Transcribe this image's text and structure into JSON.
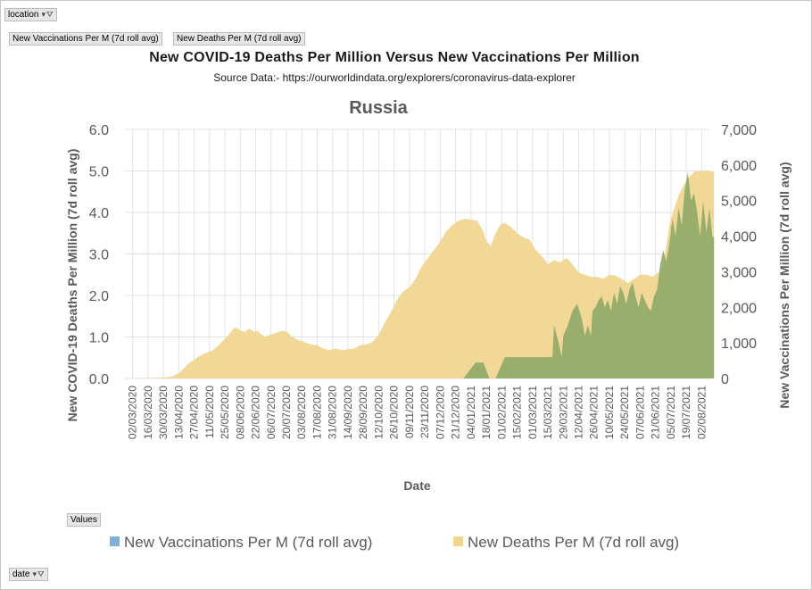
{
  "pivot": {
    "filter_field": "location",
    "row_field": "date",
    "values_button": "Values",
    "field_buttons": [
      "New Vaccinations Per M (7d roll avg)",
      "New Deaths Per M (7d roll avg)"
    ],
    "dropdown_glyph": "▾",
    "filter_glyph": "⛛"
  },
  "chart_data": {
    "type": "area",
    "title": "New COVID-19 Deaths Per Million  Versus  New Vaccinations  Per Million",
    "subtitle": "Source Data:- https://ourworldindata.org/explorers/coronavirus-data-explorer",
    "chart_title": "Russia",
    "xlabel": "Date",
    "ylabel_left": "New COVID-19 Deaths Per Million (7d roll avg)",
    "ylabel_right": "New Vaccinations Per Million (7d roll avg)",
    "y_left_range": [
      0,
      6
    ],
    "y_left_ticks": [
      "0.0",
      "1.0",
      "2.0",
      "3.0",
      "4.0",
      "5.0",
      "6.0"
    ],
    "y_right_range": [
      0,
      7000
    ],
    "y_right_ticks": [
      "0",
      "1,000",
      "2,000",
      "3,000",
      "4,000",
      "5,000",
      "6,000",
      "7,000"
    ],
    "x_tick_labels": [
      "02/03/2020",
      "16/03/2020",
      "30/03/2020",
      "13/04/2020",
      "27/04/2020",
      "11/05/2020",
      "25/05/2020",
      "08/06/2020",
      "22/06/2020",
      "06/07/2020",
      "20/07/2020",
      "03/08/2020",
      "17/08/2020",
      "31/08/2020",
      "14/09/2020",
      "28/09/2020",
      "12/10/2020",
      "26/10/2020",
      "09/11/2020",
      "23/11/2020",
      "07/12/2020",
      "21/12/2020",
      "04/01/2021",
      "18/01/2021",
      "01/02/2021",
      "15/02/2021",
      "01/03/2021",
      "15/03/2021",
      "29/03/2021",
      "12/04/2021",
      "26/04/2021",
      "10/05/2021",
      "24/05/2021",
      "07/06/2021",
      "21/06/2021",
      "05/07/2021",
      "19/07/2021",
      "02/08/2021"
    ],
    "grid": true,
    "legend_position": "bottom",
    "series": [
      {
        "name": "New Vaccinations Per M (7d roll avg)",
        "axis": "right",
        "color": "#8fa868",
        "legend_color": "#7fb0d6",
        "points": [
          [
            0,
            0
          ],
          [
            21.5,
            0
          ],
          [
            22.3,
            450
          ],
          [
            22.8,
            450
          ],
          [
            23.2,
            0
          ],
          [
            23.6,
            0
          ],
          [
            24.2,
            600
          ],
          [
            27.3,
            600
          ],
          [
            27.4,
            1500
          ],
          [
            27.7,
            1000
          ],
          [
            27.9,
            600
          ],
          [
            28.0,
            1200
          ],
          [
            28.3,
            1500
          ],
          [
            28.6,
            1900
          ],
          [
            28.9,
            2100
          ],
          [
            29.2,
            1700
          ],
          [
            29.4,
            1200
          ],
          [
            29.6,
            1500
          ],
          [
            29.8,
            1200
          ],
          [
            29.9,
            1900
          ],
          [
            30.1,
            2000
          ],
          [
            30.3,
            2200
          ],
          [
            30.5,
            2300
          ],
          [
            30.7,
            2000
          ],
          [
            30.9,
            2200
          ],
          [
            31.1,
            1900
          ],
          [
            31.3,
            2400
          ],
          [
            31.5,
            2100
          ],
          [
            31.7,
            2600
          ],
          [
            31.9,
            2400
          ],
          [
            32.1,
            2100
          ],
          [
            32.3,
            2500
          ],
          [
            32.5,
            2700
          ],
          [
            32.7,
            2300
          ],
          [
            32.9,
            2000
          ],
          [
            33.1,
            2400
          ],
          [
            33.3,
            2200
          ],
          [
            33.5,
            2000
          ],
          [
            33.7,
            1900
          ],
          [
            33.9,
            2300
          ],
          [
            34.1,
            2500
          ],
          [
            34.3,
            3200
          ],
          [
            34.5,
            3600
          ],
          [
            34.7,
            3300
          ],
          [
            34.9,
            3800
          ],
          [
            35.1,
            4500
          ],
          [
            35.3,
            4000
          ],
          [
            35.5,
            4800
          ],
          [
            35.7,
            4300
          ],
          [
            35.9,
            5300
          ],
          [
            36.1,
            5800
          ],
          [
            36.3,
            5000
          ],
          [
            36.5,
            5200
          ],
          [
            36.7,
            4700
          ],
          [
            36.9,
            4000
          ],
          [
            37.1,
            5000
          ],
          [
            37.3,
            4100
          ],
          [
            37.5,
            4800
          ],
          [
            37.7,
            4000
          ],
          [
            37.8,
            3950
          ]
        ]
      },
      {
        "name": "New Deaths Per M (7d roll avg)",
        "axis": "left",
        "color": "#f0d58e",
        "points": [
          [
            0,
            0
          ],
          [
            2,
            0.02
          ],
          [
            2.6,
            0.05
          ],
          [
            3.1,
            0.15
          ],
          [
            3.6,
            0.35
          ],
          [
            4.0,
            0.45
          ],
          [
            4.4,
            0.55
          ],
          [
            4.8,
            0.62
          ],
          [
            5.2,
            0.68
          ],
          [
            5.6,
            0.8
          ],
          [
            6.0,
            0.95
          ],
          [
            6.3,
            1.08
          ],
          [
            6.5,
            1.18
          ],
          [
            6.7,
            1.23
          ],
          [
            7.0,
            1.16
          ],
          [
            7.3,
            1.12
          ],
          [
            7.6,
            1.2
          ],
          [
            7.9,
            1.12
          ],
          [
            8.1,
            1.15
          ],
          [
            8.3,
            1.08
          ],
          [
            8.6,
            1.0
          ],
          [
            8.9,
            1.05
          ],
          [
            9.2,
            1.08
          ],
          [
            9.5,
            1.12
          ],
          [
            9.8,
            1.15
          ],
          [
            10.1,
            1.1
          ],
          [
            10.4,
            1.0
          ],
          [
            10.8,
            0.92
          ],
          [
            11.2,
            0.87
          ],
          [
            11.6,
            0.82
          ],
          [
            12.0,
            0.8
          ],
          [
            12.4,
            0.72
          ],
          [
            12.8,
            0.68
          ],
          [
            13.2,
            0.72
          ],
          [
            13.6,
            0.68
          ],
          [
            14.0,
            0.7
          ],
          [
            14.4,
            0.72
          ],
          [
            14.8,
            0.8
          ],
          [
            15.2,
            0.82
          ],
          [
            15.6,
            0.88
          ],
          [
            16.0,
            1.05
          ],
          [
            16.4,
            1.35
          ],
          [
            16.8,
            1.6
          ],
          [
            17.2,
            1.9
          ],
          [
            17.6,
            2.1
          ],
          [
            18.0,
            2.2
          ],
          [
            18.4,
            2.4
          ],
          [
            18.8,
            2.7
          ],
          [
            19.2,
            2.9
          ],
          [
            19.6,
            3.1
          ],
          [
            20.0,
            3.3
          ],
          [
            20.4,
            3.55
          ],
          [
            20.8,
            3.7
          ],
          [
            21.2,
            3.8
          ],
          [
            21.6,
            3.85
          ],
          [
            22.0,
            3.82
          ],
          [
            22.4,
            3.8
          ],
          [
            22.8,
            3.55
          ],
          [
            23.0,
            3.3
          ],
          [
            23.3,
            3.2
          ],
          [
            23.6,
            3.5
          ],
          [
            23.9,
            3.7
          ],
          [
            24.2,
            3.75
          ],
          [
            24.6,
            3.65
          ],
          [
            25.0,
            3.5
          ],
          [
            25.4,
            3.4
          ],
          [
            25.8,
            3.35
          ],
          [
            26.2,
            3.1
          ],
          [
            26.6,
            2.95
          ],
          [
            27.0,
            2.75
          ],
          [
            27.4,
            2.85
          ],
          [
            27.8,
            2.8
          ],
          [
            28.2,
            2.9
          ],
          [
            28.6,
            2.75
          ],
          [
            29.0,
            2.55
          ],
          [
            29.4,
            2.5
          ],
          [
            29.8,
            2.45
          ],
          [
            30.2,
            2.45
          ],
          [
            30.6,
            2.4
          ],
          [
            31.0,
            2.5
          ],
          [
            31.4,
            2.48
          ],
          [
            31.8,
            2.4
          ],
          [
            32.2,
            2.3
          ],
          [
            32.6,
            2.4
          ],
          [
            33.0,
            2.5
          ],
          [
            33.4,
            2.5
          ],
          [
            33.8,
            2.45
          ],
          [
            34.2,
            2.55
          ],
          [
            34.5,
            2.7
          ],
          [
            34.7,
            3.2
          ],
          [
            34.9,
            3.7
          ],
          [
            35.1,
            3.95
          ],
          [
            35.3,
            4.2
          ],
          [
            35.5,
            4.4
          ],
          [
            35.7,
            4.55
          ],
          [
            35.9,
            4.7
          ],
          [
            36.1,
            4.8
          ],
          [
            36.3,
            4.9
          ],
          [
            36.6,
            5.0
          ],
          [
            36.9,
            5.0
          ],
          [
            37.2,
            5.0
          ],
          [
            37.5,
            5.0
          ],
          [
            37.8,
            4.98
          ]
        ]
      }
    ]
  }
}
